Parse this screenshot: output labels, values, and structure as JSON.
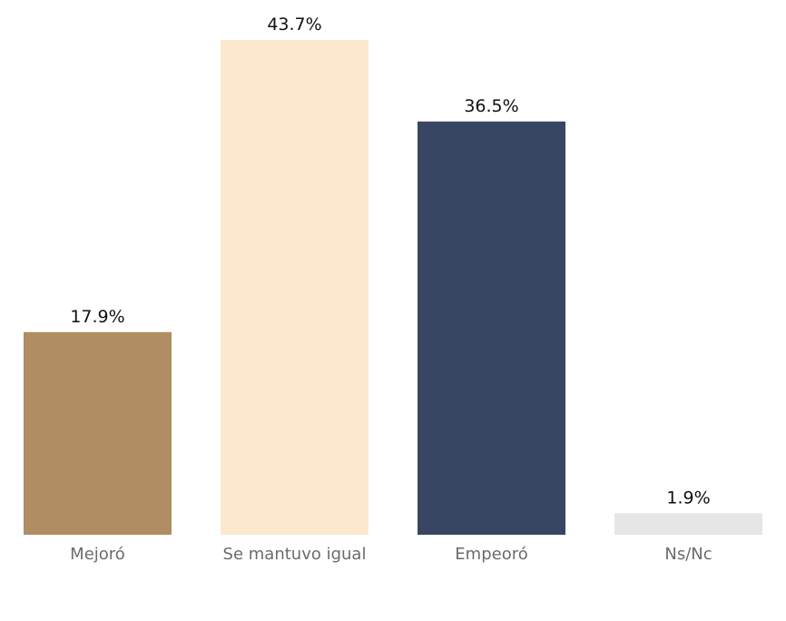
{
  "chart_data": {
    "type": "bar",
    "categories": [
      "Mejoró",
      "Se mantuvo igual",
      "Empeoró",
      "Ns/Nc"
    ],
    "values": [
      17.9,
      43.7,
      36.5,
      1.9
    ],
    "value_labels": [
      "17.9%",
      "43.7%",
      "36.5%",
      "1.9%"
    ],
    "colors": [
      "#b08d62",
      "#fde9cf",
      "#394663",
      "#e6e6e6"
    ],
    "ylim": [
      0,
      43.7
    ],
    "grid": false,
    "legend": "none"
  }
}
